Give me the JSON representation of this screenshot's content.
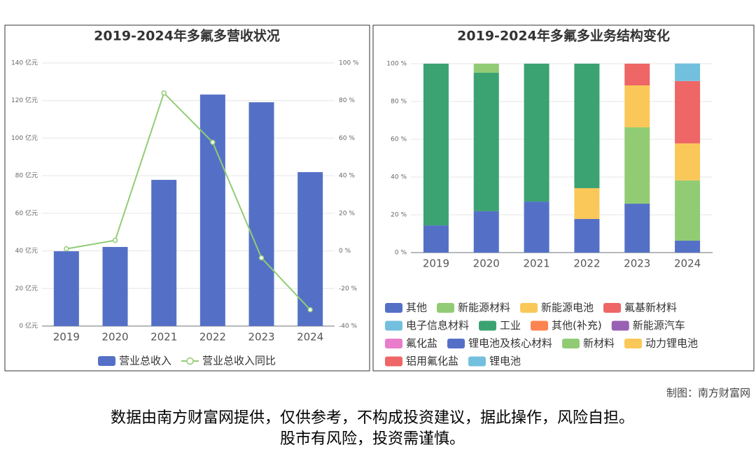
{
  "chart_data": [
    {
      "type": "bar",
      "title": "2019-2024年多氟多营收状况",
      "categories": [
        "2019",
        "2020",
        "2021",
        "2022",
        "2023",
        "2024"
      ],
      "series": [
        {
          "name": "营业总收入",
          "color": "#5470c6",
          "type": "bar",
          "values": [
            39.8,
            42.1,
            77.8,
            123.2,
            119.1,
            81.9
          ]
        },
        {
          "name": "营业总收入同比",
          "color": "#91cc75",
          "type": "line",
          "axis": "y2",
          "values": [
            1.1,
            5.6,
            84.0,
            57.8,
            -3.7,
            -31.3
          ]
        }
      ],
      "ylim": [
        0,
        140
      ],
      "yticks": [
        {
          "value": 0,
          "label": "0 亿元"
        },
        {
          "value": 20,
          "label": "20 亿元"
        },
        {
          "value": 40,
          "label": "40 亿元"
        },
        {
          "value": 60,
          "label": "60 亿元"
        },
        {
          "value": 80,
          "label": "80 亿元"
        },
        {
          "value": 100,
          "label": "100 亿元"
        },
        {
          "value": 120,
          "label": "120 亿元"
        },
        {
          "value": 140,
          "label": "140 亿元"
        }
      ],
      "y2lim": [
        -40,
        100
      ],
      "y2ticks": [
        {
          "value": -40,
          "label": "-40 %"
        },
        {
          "value": -20,
          "label": "-20 %"
        },
        {
          "value": 0,
          "label": "0 %"
        },
        {
          "value": 20,
          "label": "20 %"
        },
        {
          "value": 40,
          "label": "40 %"
        },
        {
          "value": 60,
          "label": "60 %"
        },
        {
          "value": 80,
          "label": "80 %"
        },
        {
          "value": 100,
          "label": "100 %"
        }
      ],
      "grid": true,
      "legend": "bottom"
    },
    {
      "type": "stacked_bar",
      "title": "2019-2024年多氟多业务结构变化",
      "categories": [
        "2019",
        "2020",
        "2021",
        "2022",
        "2023",
        "2024"
      ],
      "series": [
        {
          "name": "其他",
          "color": "#5470c6",
          "values": [
            14.4,
            21.9,
            27.0,
            17.8,
            25.9,
            6.3
          ]
        },
        {
          "name": "新能源材料",
          "color": "#91cc75",
          "values": [
            null,
            null,
            null,
            null,
            40.4,
            31.9
          ]
        },
        {
          "name": "新能源电池",
          "color": "#fac858",
          "values": [
            null,
            null,
            null,
            16.3,
            22.2,
            19.6
          ]
        },
        {
          "name": "氟基新材料",
          "color": "#ee6666",
          "values": [
            null,
            null,
            null,
            null,
            11.5,
            33.0
          ]
        },
        {
          "name": "电子信息材料",
          "color": "#73c0de",
          "values": [
            null,
            null,
            null,
            null,
            null,
            9.3
          ]
        },
        {
          "name": "工业",
          "color": "#3ba272",
          "values": [
            85.6,
            73.3,
            73.0,
            65.9,
            null,
            null
          ]
        },
        {
          "name": "其他(补充)",
          "color": "#fc8452",
          "values": [
            null,
            null,
            null,
            null,
            null,
            null
          ]
        },
        {
          "name": "新能源汽车",
          "color": "#9a60b4",
          "values": [
            null,
            null,
            null,
            null,
            null,
            null
          ]
        },
        {
          "name": "氟化盐",
          "color": "#ea7ccc",
          "values": [
            null,
            null,
            null,
            null,
            null,
            null
          ]
        },
        {
          "name": "锂电池及核心材料",
          "color": "#5470c6",
          "values": [
            null,
            null,
            null,
            null,
            null,
            null
          ]
        },
        {
          "name": "新材料",
          "color": "#91cc75",
          "values": [
            null,
            4.8,
            null,
            null,
            null,
            null
          ]
        },
        {
          "name": "动力锂电池",
          "color": "#fac858",
          "values": [
            null,
            null,
            null,
            null,
            null,
            null
          ]
        },
        {
          "name": "铝用氟化盐",
          "color": "#ee6666",
          "values": [
            null,
            null,
            null,
            null,
            null,
            null
          ]
        },
        {
          "name": "锂电池",
          "color": "#73c0de",
          "values": [
            null,
            null,
            null,
            null,
            null,
            null
          ]
        }
      ],
      "ylim": [
        0,
        100
      ],
      "yticks": [
        {
          "value": 0,
          "label": "0 %"
        },
        {
          "value": 20,
          "label": "20 %"
        },
        {
          "value": 40,
          "label": "40 %"
        },
        {
          "value": 60,
          "label": "60 %"
        },
        {
          "value": 80,
          "label": "80 %"
        },
        {
          "value": 100,
          "label": "100 %"
        }
      ],
      "grid": true,
      "legend": "bottom"
    }
  ],
  "footer": {
    "credit": "制图：南方财富网",
    "disclaimer": [
      "数据由南方财富网提供，仅供参考，不构成投资建议，据此操作，风险自担。",
      "股市有风险，投资需谨慎。"
    ]
  }
}
